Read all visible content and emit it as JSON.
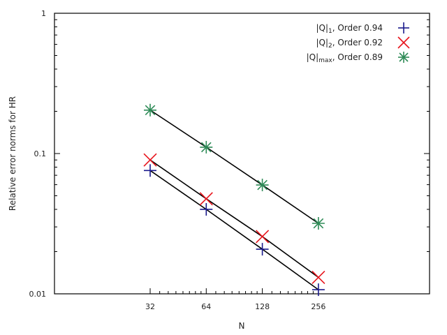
{
  "chart_data": {
    "type": "line",
    "title": "",
    "xlabel": "N",
    "ylabel": "Relative error norms for HR",
    "xscale": "log2",
    "yscale": "log10",
    "x": [
      32,
      64,
      128,
      256
    ],
    "xticks": [
      "32",
      "64",
      "128",
      "256"
    ],
    "yticks": [
      "0.01",
      "0.1",
      "1"
    ],
    "ylim": [
      0.01,
      1
    ],
    "grid": false,
    "legend_position": "top-right",
    "series": [
      {
        "name": "|Q|1, Order 0.94",
        "label_main": "|Q|",
        "label_sub": "1",
        "label_tail": ", Order 0.94",
        "marker": "plus",
        "color": "#1a1a8c",
        "values": [
          0.0757,
          0.04,
          0.0208,
          0.0107
        ]
      },
      {
        "name": "|Q|2, Order 0.92",
        "label_main": "|Q|",
        "label_sub": "2",
        "label_tail": ", Order 0.92",
        "marker": "cross",
        "color": "#e8141c",
        "values": [
          0.09,
          0.0476,
          0.0256,
          0.0131
        ]
      },
      {
        "name": "|Q|max, Order 0.89",
        "label_main": "|Q|",
        "label_sub": "max",
        "label_tail": ", Order 0.89",
        "marker": "star",
        "color": "#2e8b57",
        "values": [
          0.204,
          0.111,
          0.0597,
          0.0318
        ]
      }
    ]
  }
}
